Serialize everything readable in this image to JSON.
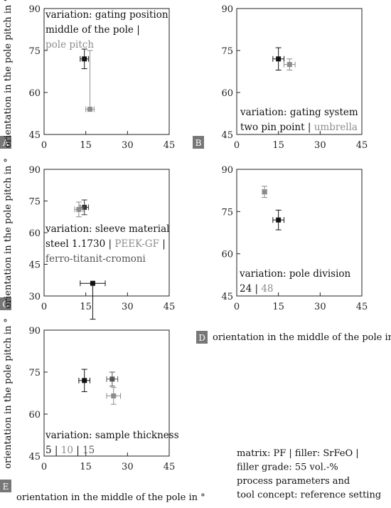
{
  "chart_data": [
    {
      "id": "A",
      "type": "scatter",
      "error_bars": true,
      "xlim": [
        0,
        45
      ],
      "ylim": [
        45,
        90
      ],
      "xticks": [
        0,
        15,
        30,
        45
      ],
      "yticks": [
        45,
        60,
        75,
        90
      ],
      "annotation_lines": [
        [
          {
            "text": "variation: gating position",
            "color": "#111111"
          }
        ],
        [
          {
            "text": "middle of the pole",
            "color": "#111111"
          },
          {
            "text": " | ",
            "color": "#111111"
          }
        ],
        [
          {
            "text": "pole pitch",
            "color": "#8c8c8c"
          }
        ]
      ],
      "series": [
        {
          "name": "middle of the pole",
          "color": "#111111",
          "x": 14.5,
          "y": 72,
          "xerr": 1.5,
          "yerr": 3.5
        },
        {
          "name": "pole pitch",
          "color": "#8c8c8c",
          "x": 16.5,
          "y": 54,
          "xerr": 1.5,
          "yerr": [
            21,
            0
          ]
        }
      ]
    },
    {
      "id": "B",
      "type": "scatter",
      "error_bars": true,
      "xlim": [
        0,
        45
      ],
      "ylim": [
        45,
        90
      ],
      "xticks": [
        0,
        15,
        30,
        45
      ],
      "yticks": [
        45,
        60,
        75,
        90
      ],
      "annotation_lines": [
        [
          {
            "text": "variation: gating system",
            "color": "#111111"
          }
        ],
        [
          {
            "text": "two pin point",
            "color": "#111111"
          },
          {
            "text": " | ",
            "color": "#111111"
          },
          {
            "text": "umbrella",
            "color": "#8c8c8c"
          }
        ]
      ],
      "series": [
        {
          "name": "two pin point",
          "color": "#111111",
          "x": 15,
          "y": 72,
          "xerr": 2,
          "yerr": 4
        },
        {
          "name": "umbrella",
          "color": "#8c8c8c",
          "x": 19,
          "y": 70,
          "xerr": 2,
          "yerr": 2
        }
      ]
    },
    {
      "id": "C",
      "type": "scatter",
      "error_bars": true,
      "xlim": [
        0,
        45
      ],
      "ylim": [
        30,
        90
      ],
      "xticks": [
        0,
        15,
        30,
        45
      ],
      "yticks": [
        30,
        45,
        60,
        75,
        90
      ],
      "annotation_lines": [
        [
          {
            "text": "variation: sleeve material",
            "color": "#111111"
          }
        ],
        [
          {
            "text": "steel 1.1730",
            "color": "#111111"
          },
          {
            "text": " | ",
            "color": "#111111"
          },
          {
            "text": "PEEK-GF",
            "color": "#8c8c8c"
          },
          {
            "text": " | ",
            "color": "#111111"
          }
        ],
        [
          {
            "text": "ferro-titanit-cromoni",
            "color": "#555555"
          }
        ]
      ],
      "series": [
        {
          "name": "steel 1.1730",
          "color": "#333333",
          "x": 14.5,
          "y": 72,
          "xerr": 1.5,
          "yerr": 3.5
        },
        {
          "name": "PEEK-GF",
          "color": "#8c8c8c",
          "x": 12.5,
          "y": 71,
          "xerr": 1.5,
          "yerr": 3.5
        },
        {
          "name": "ferro-titanit-cromoni",
          "color": "#111111",
          "x": 17.5,
          "y": 36,
          "xerr": 4.5,
          "yerr": [
            0,
            17
          ]
        }
      ]
    },
    {
      "id": "D",
      "type": "scatter",
      "error_bars": true,
      "xlim": [
        0,
        45
      ],
      "ylim": [
        45,
        90
      ],
      "xticks": [
        0,
        15,
        30,
        45
      ],
      "yticks": [
        45,
        60,
        75,
        90
      ],
      "annotation_lines": [
        [
          {
            "text": "variation: pole division",
            "color": "#111111"
          }
        ],
        [
          {
            "text": "24",
            "color": "#111111"
          },
          {
            "text": " | ",
            "color": "#111111"
          },
          {
            "text": "48",
            "color": "#8c8c8c"
          }
        ]
      ],
      "series": [
        {
          "name": "24",
          "color": "#111111",
          "x": 15,
          "y": 72,
          "xerr": 2,
          "yerr": 3.5
        },
        {
          "name": "48",
          "color": "#8c8c8c",
          "x": 10,
          "y": 82,
          "xerr": 0.8,
          "yerr": 2
        }
      ]
    },
    {
      "id": "E",
      "type": "scatter",
      "error_bars": true,
      "xlim": [
        0,
        45
      ],
      "ylim": [
        45,
        90
      ],
      "xticks": [
        0,
        15,
        30,
        45
      ],
      "yticks": [
        45,
        60,
        75,
        90
      ],
      "annotation_lines": [
        [
          {
            "text": "variation: sample thickness",
            "color": "#111111"
          }
        ],
        [
          {
            "text": "5",
            "color": "#111111"
          },
          {
            "text": " | ",
            "color": "#111111"
          },
          {
            "text": "10",
            "color": "#8c8c8c"
          },
          {
            "text": " | ",
            "color": "#111111"
          },
          {
            "text": "15",
            "color": "#555555"
          }
        ]
      ],
      "series": [
        {
          "name": "5",
          "color": "#111111",
          "x": 14.5,
          "y": 72,
          "xerr": 2,
          "yerr": 4
        },
        {
          "name": "15",
          "color": "#555555",
          "x": 24.5,
          "y": 72.5,
          "xerr": 2,
          "yerr": 2.5
        },
        {
          "name": "10",
          "color": "#8c8c8c",
          "x": 25,
          "y": 66.5,
          "xerr": 2.5,
          "yerr": 3
        }
      ]
    }
  ],
  "ylabel": "orientation in the pole pitch in °",
  "xlabel": "orientation in the middle of the pole in °",
  "footnote": [
    "matrix: PF | filler: SrFeO |",
    "filler grade: 55 vol.-%",
    "process parameters and",
    "tool concept: reference setting"
  ]
}
